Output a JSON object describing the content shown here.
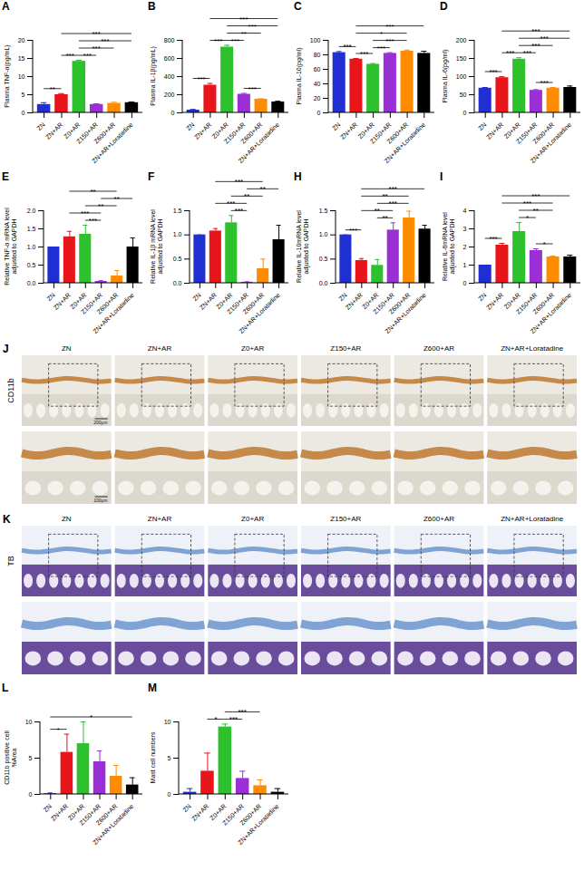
{
  "chart_data": [
    {
      "type": "bar",
      "panel": "A",
      "y_label": "Plasma TNF-α(pg/mL)",
      "categories": [
        "ZN",
        "ZN+AR",
        "Z0+AR",
        "Z150+AR",
        "Z600+AR",
        "ZN+AR+Loratadine"
      ],
      "values": [
        2.3,
        5.0,
        14.2,
        2.3,
        2.6,
        2.8
      ],
      "error": [
        0.5,
        0.3,
        0.3,
        0.2,
        0.3,
        0.2
      ],
      "colors": [
        "#1f2fd1",
        "#e8151b",
        "#2ec12e",
        "#9b2fd6",
        "#ff8c00",
        "#000000"
      ],
      "ylim": [
        0,
        20
      ],
      "yticks": [
        0,
        5,
        10,
        15,
        20
      ],
      "significance": [
        {
          "from": "ZN",
          "to": "ZN+AR",
          "label": "**"
        },
        {
          "from": "ZN+AR",
          "to": "Z0+AR",
          "label": "***"
        },
        {
          "from": "Z0+AR",
          "to": "Z150+AR",
          "label": "***"
        },
        {
          "from": "Z0+AR",
          "to": "Z600+AR",
          "label": "***"
        },
        {
          "from": "Z0+AR",
          "to": "ZN+AR+Loratadine",
          "label": "***"
        },
        {
          "from": "ZN+AR",
          "to": "ZN+AR+Loratadine",
          "label": "***"
        }
      ]
    },
    {
      "type": "bar",
      "panel": "B",
      "y_label": "Plasma IL-1β(pg/mL)",
      "categories": [
        "ZN",
        "ZN+AR",
        "Z0+AR",
        "Z150+AR",
        "Z600+AR",
        "ZN+AR+Loratadine"
      ],
      "values": [
        30,
        305,
        725,
        205,
        150,
        120
      ],
      "error": [
        8,
        20,
        20,
        10,
        5,
        8
      ],
      "colors": [
        "#1f2fd1",
        "#e8151b",
        "#2ec12e",
        "#9b2fd6",
        "#ff8c00",
        "#000000"
      ],
      "ylim": [
        0,
        800
      ],
      "yticks": [
        0,
        200,
        400,
        600,
        800
      ],
      "significance": [
        {
          "from": "ZN",
          "to": "ZN+AR",
          "label": "***"
        },
        {
          "from": "ZN+AR",
          "to": "Z0+AR",
          "label": "***"
        },
        {
          "from": "Z0+AR",
          "to": "Z150+AR",
          "label": "***"
        },
        {
          "from": "Z150+AR",
          "to": "Z600+AR",
          "label": "***"
        },
        {
          "from": "Z0+AR",
          "to": "Z600+AR",
          "label": "**"
        },
        {
          "from": "Z0+AR",
          "to": "ZN+AR+Loratadine",
          "label": "***"
        },
        {
          "from": "ZN+AR",
          "to": "ZN+AR+Loratadine",
          "label": "***"
        }
      ]
    },
    {
      "type": "bar",
      "panel": "C",
      "y_label": "Plasma IL-10(pg/ml)",
      "categories": [
        "ZN",
        "ZN+AR",
        "Z0+AR",
        "Z150+AR",
        "Z600+AR",
        "ZN+AR+Loratadine"
      ],
      "values": [
        83,
        74,
        67,
        82,
        85,
        82
      ],
      "error": [
        1.5,
        1,
        1,
        1,
        1.5,
        3
      ],
      "colors": [
        "#1f2fd1",
        "#e8151b",
        "#2ec12e",
        "#9b2fd6",
        "#ff8c00",
        "#000000"
      ],
      "ylim": [
        0,
        100
      ],
      "yticks": [
        0,
        20,
        40,
        60,
        80,
        100
      ],
      "significance": [
        {
          "from": "ZN",
          "to": "ZN+AR",
          "label": "***"
        },
        {
          "from": "ZN+AR",
          "to": "Z0+AR",
          "label": "***"
        },
        {
          "from": "Z0+AR",
          "to": "Z150+AR",
          "label": "***"
        },
        {
          "from": "Z0+AR",
          "to": "Z600+AR",
          "label": "***"
        },
        {
          "from": "ZN+AR",
          "to": "Z600+AR",
          "label": "*"
        },
        {
          "from": "ZN+AR",
          "to": "ZN+AR+Loratadine",
          "label": "***"
        }
      ]
    },
    {
      "type": "bar",
      "panel": "D",
      "y_label": "Plasma IL-6(pg/ml)",
      "categories": [
        "ZN",
        "ZN+AR",
        "Z0+AR",
        "Z150+AR",
        "Z600+AR",
        "ZN+AR+Loratadine"
      ],
      "values": [
        68,
        97,
        148,
        62,
        68,
        70
      ],
      "error": [
        2,
        3,
        4,
        2,
        2,
        4
      ],
      "colors": [
        "#1f2fd1",
        "#e8151b",
        "#2ec12e",
        "#9b2fd6",
        "#ff8c00",
        "#000000"
      ],
      "ylim": [
        0,
        200
      ],
      "yticks": [
        0,
        50,
        100,
        150,
        200
      ],
      "significance": [
        {
          "from": "ZN",
          "to": "ZN+AR",
          "label": "***"
        },
        {
          "from": "ZN+AR",
          "to": "Z0+AR",
          "label": "***"
        },
        {
          "from": "Z0+AR",
          "to": "Z150+AR",
          "label": "***"
        },
        {
          "from": "Z150+AR",
          "to": "Z600+AR",
          "label": "***"
        },
        {
          "from": "Z0+AR",
          "to": "Z600+AR",
          "label": "***"
        },
        {
          "from": "Z0+AR",
          "to": "ZN+AR+Loratadine",
          "label": "***"
        },
        {
          "from": "ZN+AR",
          "to": "ZN+AR+Loratadine",
          "label": "***"
        }
      ]
    },
    {
      "type": "bar",
      "panel": "E",
      "y_label": "Relative TNF-α mRNA level\nadjusted to GAPDH",
      "categories": [
        "ZN",
        "ZN+AR",
        "Z0+AR",
        "Z150+AR",
        "Z600+AR",
        "ZN+AR+Loratadine"
      ],
      "values": [
        1.0,
        1.28,
        1.35,
        0.05,
        0.2,
        1.0
      ],
      "error": [
        0,
        0.15,
        0.25,
        0.02,
        0.15,
        0.25
      ],
      "colors": [
        "#1f2fd1",
        "#e8151b",
        "#2ec12e",
        "#9b2fd6",
        "#ff8c00",
        "#000000"
      ],
      "ylim": [
        0,
        2
      ],
      "yticks": [
        {
          "value": 0,
          "label": "0.0"
        },
        0.5,
        {
          "value": 1,
          "label": "1.0"
        },
        1.5,
        {
          "value": 2,
          "label": "2.0"
        }
      ],
      "significance": [
        {
          "from": "Z0+AR",
          "to": "Z150+AR",
          "label": "***"
        },
        {
          "from": "ZN+AR",
          "to": "Z150+AR",
          "label": "***"
        },
        {
          "from": "Z0+AR",
          "to": "Z600+AR",
          "label": "**"
        },
        {
          "from": "Z150+AR",
          "to": "ZN+AR+Loratadine",
          "label": "**"
        },
        {
          "from": "ZN+AR",
          "to": "Z600+AR",
          "label": "**"
        }
      ]
    },
    {
      "type": "bar",
      "panel": "F",
      "y_label": "Relative IL-1β mRNA level\nadjusted to GAPDH",
      "categories": [
        "ZN",
        "ZN+AR",
        "Z0+AR",
        "Z150+AR",
        "Z600+AR",
        "ZN+AR+Loratadine"
      ],
      "values": [
        1.0,
        1.08,
        1.25,
        0.02,
        0.3,
        0.9
      ],
      "error": [
        0,
        0.05,
        0.15,
        0.01,
        0.2,
        0.3
      ],
      "colors": [
        "#1f2fd1",
        "#e8151b",
        "#2ec12e",
        "#9b2fd6",
        "#ff8c00",
        "#000000"
      ],
      "ylim": [
        0,
        1.5
      ],
      "yticks": [
        {
          "value": 0,
          "label": "0.0"
        },
        0.5,
        {
          "value": 1,
          "label": "1.0"
        },
        1.5
      ],
      "significance": [
        {
          "from": "Z0+AR",
          "to": "Z150+AR",
          "label": "***"
        },
        {
          "from": "ZN+AR",
          "to": "Z150+AR",
          "label": "***"
        },
        {
          "from": "Z0+AR",
          "to": "Z600+AR",
          "label": "**"
        },
        {
          "from": "Z150+AR",
          "to": "ZN+AR+Loratadine",
          "label": "**"
        },
        {
          "from": "ZN+AR",
          "to": "Z600+AR",
          "label": "***"
        }
      ]
    },
    {
      "type": "bar",
      "panel": "H",
      "y_label": "Relative IL-10mRNA level\nadjusted to GAPDH",
      "categories": [
        "ZN",
        "ZN+AR",
        "Z0+AR",
        "Z150+AR",
        "Z600+AR",
        "ZN+AR+Loratadine"
      ],
      "values": [
        1.0,
        0.47,
        0.37,
        1.1,
        1.35,
        1.12
      ],
      "error": [
        0,
        0.04,
        0.12,
        0.15,
        0.14,
        0.08
      ],
      "colors": [
        "#1f2fd1",
        "#e8151b",
        "#2ec12e",
        "#9b2fd6",
        "#ff8c00",
        "#000000"
      ],
      "ylim": [
        0,
        1.5
      ],
      "yticks": [
        {
          "value": 0,
          "label": "0.0"
        },
        0.5,
        {
          "value": 1,
          "label": "1.0"
        },
        1.5
      ],
      "significance": [
        {
          "from": "ZN",
          "to": "ZN+AR",
          "label": "***"
        },
        {
          "from": "ZN+AR",
          "to": "Z150+AR",
          "label": "**"
        },
        {
          "from": "Z0+AR",
          "to": "Z150+AR",
          "label": "**"
        },
        {
          "from": "Z0+AR",
          "to": "Z600+AR",
          "label": "***"
        },
        {
          "from": "ZN+AR",
          "to": "Z600+AR",
          "label": "**"
        },
        {
          "from": "ZN+AR",
          "to": "ZN+AR+Loratadine",
          "label": "***"
        }
      ]
    },
    {
      "type": "bar",
      "panel": "I",
      "y_label": "Relative IL-6mRNA level\nadjusted to GAPDH",
      "categories": [
        "ZN",
        "ZN+AR",
        "Z0+AR",
        "Z150+AR",
        "Z600+AR",
        "ZN+AR+Loratadine"
      ],
      "values": [
        1.0,
        2.1,
        2.85,
        1.8,
        1.45,
        1.45
      ],
      "error": [
        0,
        0.1,
        0.5,
        0.1,
        0.05,
        0.1
      ],
      "colors": [
        "#1f2fd1",
        "#e8151b",
        "#2ec12e",
        "#9b2fd6",
        "#ff8c00",
        "#000000"
      ],
      "ylim": [
        0,
        4
      ],
      "yticks": [
        0,
        1,
        2,
        3,
        4
      ],
      "significance": [
        {
          "from": "ZN",
          "to": "ZN+AR",
          "label": "***"
        },
        {
          "from": "Z150+AR",
          "to": "Z600+AR",
          "label": "*"
        },
        {
          "from": "Z0+AR",
          "to": "Z150+AR",
          "label": "*"
        },
        {
          "from": "Z0+AR",
          "to": "Z600+AR",
          "label": "**"
        },
        {
          "from": "ZN+AR",
          "to": "Z600+AR",
          "label": "***"
        },
        {
          "from": "ZN+AR",
          "to": "ZN+AR+Loratadine",
          "label": "***"
        }
      ]
    },
    {
      "type": "bar",
      "panel": "L",
      "y_label": "CD11b positive cell\n%Area",
      "categories": [
        "ZN",
        "ZN+AR",
        "Z0+AR",
        "Z150+AR",
        "Z600+AR",
        "ZN+AR+Loratadine"
      ],
      "values": [
        0.1,
        5.8,
        7.0,
        4.5,
        2.5,
        1.3
      ],
      "error": [
        0.1,
        2.5,
        3.0,
        1.5,
        1.5,
        1.0
      ],
      "colors": [
        "#1f2fd1",
        "#e8151b",
        "#2ec12e",
        "#9b2fd6",
        "#ff8c00",
        "#000000"
      ],
      "ylim": [
        0,
        10
      ],
      "yticks": [
        0,
        5,
        10
      ],
      "significance": [
        {
          "from": "ZN",
          "to": "ZN+AR",
          "label": "*"
        },
        {
          "from": "ZN",
          "to": "ZN+AR+Loratadine",
          "label": "*"
        }
      ]
    },
    {
      "type": "bar",
      "panel": "M",
      "y_label": "Mast cell numbers",
      "categories": [
        "ZN",
        "ZN+AR",
        "Z0+AR",
        "Z150+AR",
        "Z600+AR",
        "ZN+AR+Loratadine"
      ],
      "values": [
        0.3,
        3.2,
        9.3,
        2.2,
        1.2,
        0.3
      ],
      "error": [
        0.5,
        2.5,
        0.4,
        1.0,
        0.8,
        0.5
      ],
      "colors": [
        "#1f2fd1",
        "#e8151b",
        "#2ec12e",
        "#9b2fd6",
        "#ff8c00",
        "#000000"
      ],
      "ylim": [
        0,
        10
      ],
      "yticks": [
        0,
        5,
        10
      ],
      "significance": [
        {
          "from": "ZN+AR",
          "to": "Z0+AR",
          "label": "*"
        },
        {
          "from": "Z0+AR",
          "to": "Z150+AR",
          "label": "***"
        },
        {
          "from": "Z0+AR",
          "to": "Z600+AR",
          "label": "***"
        }
      ]
    }
  ],
  "image_panels": [
    {
      "panel": "J",
      "stain": "CD11b",
      "columns": [
        "ZN",
        "ZN+AR",
        "Z0+AR",
        "Z150+AR",
        "Z600+AR",
        "ZN+AR+Loratadine"
      ],
      "scale_bars": [
        "200μm",
        "100μm"
      ]
    },
    {
      "panel": "K",
      "stain": "TB",
      "columns": [
        "ZN",
        "ZN+AR",
        "Z0+AR",
        "Z150+AR",
        "Z600+AR",
        "ZN+AR+Loratadine"
      ]
    }
  ]
}
